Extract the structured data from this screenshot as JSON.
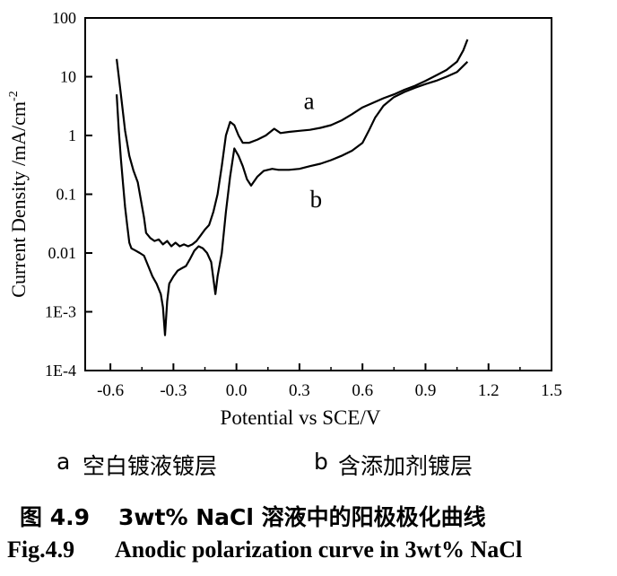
{
  "chart_data": {
    "type": "line",
    "title": "",
    "xlabel": "Potential  vs  SCE/V",
    "ylabel": "Current Density /mA/cm",
    "ylabel_sup": "-2",
    "xlim": [
      -0.72,
      1.5
    ],
    "ylim": [
      0.0001,
      100
    ],
    "yscale": "log",
    "x_ticks": [
      -0.6,
      -0.3,
      0.0,
      0.3,
      0.6,
      0.9,
      1.2,
      1.5
    ],
    "x_tick_labels": [
      "-0.6",
      "-0.3",
      "0.0",
      "0.3",
      "0.6",
      "0.9",
      "1.2",
      "1.5"
    ],
    "y_ticks": [
      100,
      10,
      1,
      0.1,
      0.01,
      0.001,
      0.0001
    ],
    "y_tick_labels": [
      "100",
      "10",
      "1",
      "0.1",
      "0.01",
      "1E-3",
      "1E-4"
    ],
    "grid": false,
    "series": [
      {
        "name": "a",
        "color": "#000000",
        "points": [
          [
            -0.57,
            20
          ],
          [
            -0.55,
            5
          ],
          [
            -0.53,
            1.2
          ],
          [
            -0.51,
            0.45
          ],
          [
            -0.49,
            0.25
          ],
          [
            -0.47,
            0.16
          ],
          [
            -0.455,
            0.08
          ],
          [
            -0.44,
            0.04
          ],
          [
            -0.43,
            0.022
          ],
          [
            -0.41,
            0.018
          ],
          [
            -0.39,
            0.016
          ],
          [
            -0.37,
            0.017
          ],
          [
            -0.35,
            0.014
          ],
          [
            -0.33,
            0.016
          ],
          [
            -0.31,
            0.013
          ],
          [
            -0.29,
            0.015
          ],
          [
            -0.27,
            0.013
          ],
          [
            -0.25,
            0.014
          ],
          [
            -0.23,
            0.013
          ],
          [
            -0.21,
            0.014
          ],
          [
            -0.19,
            0.016
          ],
          [
            -0.17,
            0.02
          ],
          [
            -0.15,
            0.025
          ],
          [
            -0.13,
            0.03
          ],
          [
            -0.11,
            0.05
          ],
          [
            -0.09,
            0.1
          ],
          [
            -0.07,
            0.3
          ],
          [
            -0.05,
            1.0
          ],
          [
            -0.03,
            1.7
          ],
          [
            -0.01,
            1.5
          ],
          [
            0.01,
            1.0
          ],
          [
            0.03,
            0.75
          ],
          [
            0.06,
            0.75
          ],
          [
            0.1,
            0.85
          ],
          [
            0.14,
            1.0
          ],
          [
            0.18,
            1.3
          ],
          [
            0.21,
            1.1
          ],
          [
            0.25,
            1.15
          ],
          [
            0.3,
            1.2
          ],
          [
            0.35,
            1.25
          ],
          [
            0.4,
            1.35
          ],
          [
            0.45,
            1.5
          ],
          [
            0.5,
            1.8
          ],
          [
            0.55,
            2.3
          ],
          [
            0.6,
            3.0
          ],
          [
            0.65,
            3.6
          ],
          [
            0.7,
            4.3
          ],
          [
            0.75,
            5.0
          ],
          [
            0.8,
            6.0
          ],
          [
            0.85,
            7.0
          ],
          [
            0.9,
            8.5
          ],
          [
            0.95,
            10.5
          ],
          [
            1.0,
            13
          ],
          [
            1.05,
            18
          ],
          [
            1.08,
            28
          ],
          [
            1.1,
            43
          ]
        ]
      },
      {
        "name": "b",
        "color": "#000000",
        "points": [
          [
            -0.57,
            5
          ],
          [
            -0.56,
            1.2
          ],
          [
            -0.55,
            0.4
          ],
          [
            -0.54,
            0.15
          ],
          [
            -0.53,
            0.06
          ],
          [
            -0.52,
            0.03
          ],
          [
            -0.51,
            0.015
          ],
          [
            -0.5,
            0.012
          ],
          [
            -0.48,
            0.011
          ],
          [
            -0.46,
            0.01
          ],
          [
            -0.44,
            0.009
          ],
          [
            -0.42,
            0.006
          ],
          [
            -0.4,
            0.004
          ],
          [
            -0.38,
            0.003
          ],
          [
            -0.36,
            0.002
          ],
          [
            -0.35,
            0.0012
          ],
          [
            -0.34,
            0.0004
          ],
          [
            -0.33,
            0.0015
          ],
          [
            -0.32,
            0.003
          ],
          [
            -0.3,
            0.004
          ],
          [
            -0.28,
            0.005
          ],
          [
            -0.26,
            0.0055
          ],
          [
            -0.24,
            0.006
          ],
          [
            -0.22,
            0.008
          ],
          [
            -0.2,
            0.011
          ],
          [
            -0.18,
            0.013
          ],
          [
            -0.16,
            0.012
          ],
          [
            -0.14,
            0.01
          ],
          [
            -0.12,
            0.007
          ],
          [
            -0.1,
            0.002
          ],
          [
            -0.09,
            0.004
          ],
          [
            -0.07,
            0.01
          ],
          [
            -0.05,
            0.05
          ],
          [
            -0.03,
            0.2
          ],
          [
            -0.01,
            0.6
          ],
          [
            0.01,
            0.45
          ],
          [
            0.03,
            0.3
          ],
          [
            0.05,
            0.18
          ],
          [
            0.07,
            0.14
          ],
          [
            0.1,
            0.2
          ],
          [
            0.13,
            0.25
          ],
          [
            0.17,
            0.27
          ],
          [
            0.2,
            0.26
          ],
          [
            0.25,
            0.26
          ],
          [
            0.3,
            0.27
          ],
          [
            0.35,
            0.3
          ],
          [
            0.4,
            0.33
          ],
          [
            0.45,
            0.38
          ],
          [
            0.5,
            0.45
          ],
          [
            0.55,
            0.55
          ],
          [
            0.6,
            0.75
          ],
          [
            0.63,
            1.2
          ],
          [
            0.66,
            2.0
          ],
          [
            0.7,
            3.2
          ],
          [
            0.75,
            4.5
          ],
          [
            0.8,
            5.5
          ],
          [
            0.85,
            6.5
          ],
          [
            0.9,
            7.5
          ],
          [
            0.95,
            8.5
          ],
          [
            1.0,
            10
          ],
          [
            1.05,
            12
          ],
          [
            1.1,
            18
          ]
        ]
      }
    ],
    "annotations": [
      {
        "text": "a",
        "x": 0.32,
        "y": 2.8
      },
      {
        "text": "b",
        "x": 0.35,
        "y": 0.06
      }
    ]
  },
  "legend_caption": {
    "a_letter": "a",
    "a_text": "空白镀液镀层",
    "b_letter": "b",
    "b_text": "含添加剂镀层"
  },
  "figure_caption_cn": {
    "number": "图 4.9",
    "text": "3wt% NaCl 溶液中的阳极极化曲线"
  },
  "figure_caption_en": {
    "number": "Fig.4.9",
    "text": "Anodic polarization curve in 3wt% NaCl"
  }
}
